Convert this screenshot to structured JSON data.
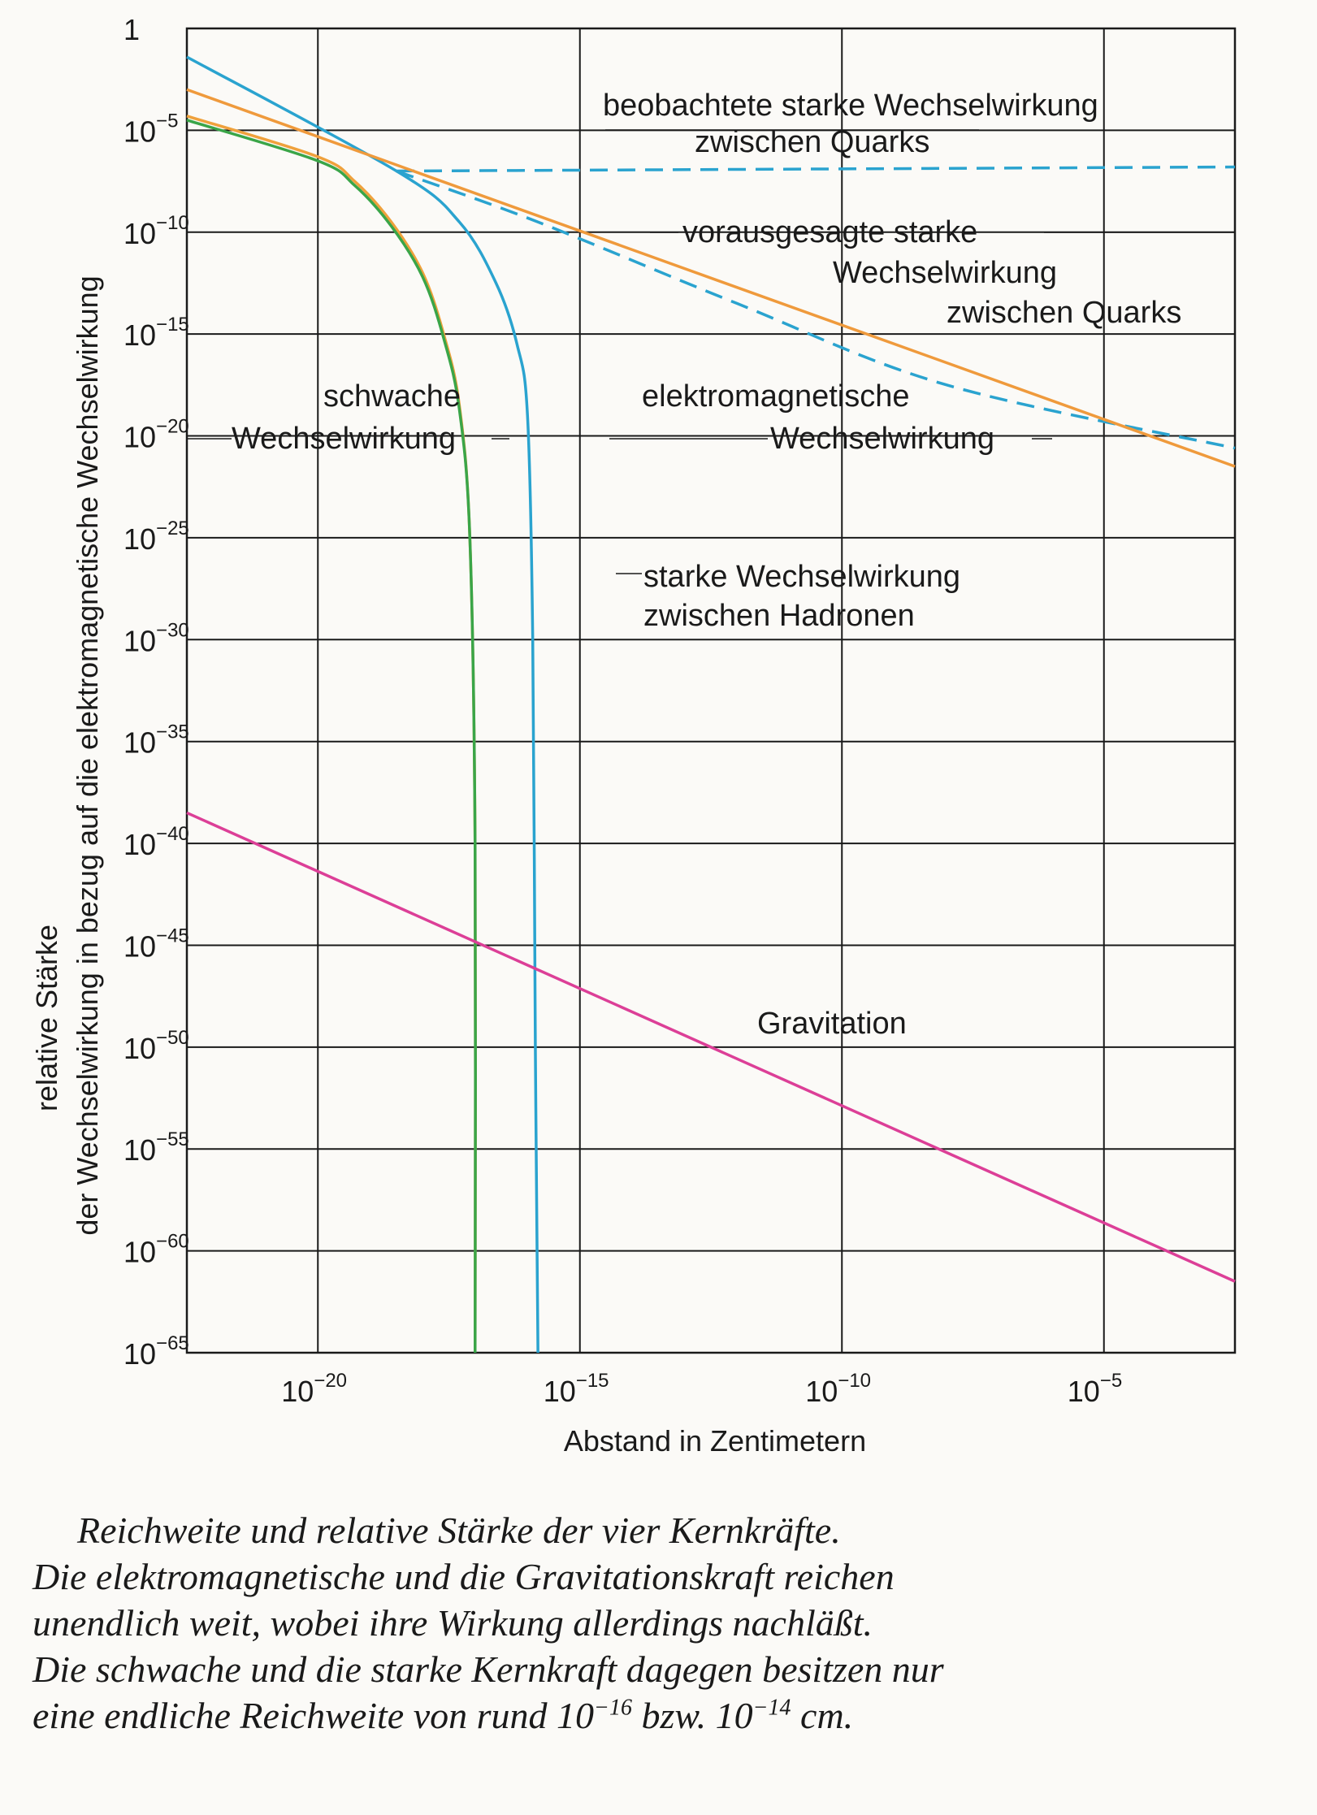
{
  "chart_data": {
    "type": "line",
    "xlabel": "Abstand in Zentimetern",
    "ylabel_line1": "relative Stärke",
    "ylabel_line2": "der Wechselwirkung in bezug  auf die elektromagnetische Wechselwirkung",
    "x_scale": "log",
    "y_scale": "log",
    "x_range_exponent": [
      -22.5,
      -2.5
    ],
    "y_range_exponent": [
      -65,
      0
    ],
    "x_ticks": [
      {
        "base": "10",
        "exp": "−20",
        "value": -20
      },
      {
        "base": "10",
        "exp": "−15",
        "value": -15
      },
      {
        "base": "10",
        "exp": "−10",
        "value": -10
      },
      {
        "base": "10",
        "exp": "−5",
        "value": -5
      }
    ],
    "y_ticks": [
      {
        "base": "1",
        "exp": "",
        "value": 0
      },
      {
        "base": "10",
        "exp": "−5",
        "value": -5
      },
      {
        "base": "10",
        "exp": "−10",
        "value": -10
      },
      {
        "base": "10",
        "exp": "−15",
        "value": -15
      },
      {
        "base": "10",
        "exp": "−20",
        "value": -20
      },
      {
        "base": "10",
        "exp": "−25",
        "value": -25
      },
      {
        "base": "10",
        "exp": "−30",
        "value": -30
      },
      {
        "base": "10",
        "exp": "−35",
        "value": -35
      },
      {
        "base": "10",
        "exp": "−40",
        "value": -40
      },
      {
        "base": "10",
        "exp": "−45",
        "value": -45
      },
      {
        "base": "10",
        "exp": "−50",
        "value": -50
      },
      {
        "base": "10",
        "exp": "−55",
        "value": -55
      },
      {
        "base": "10",
        "exp": "−60",
        "value": -60
      },
      {
        "base": "10",
        "exp": "−65",
        "value": -65
      }
    ],
    "grid": true,
    "series": [
      {
        "key": "strong_quarks_observed",
        "color": "#2aa3cf",
        "dash": "22,12",
        "x": [
          -18.5,
          -2.5
        ],
        "y": [
          -7,
          -6.8
        ]
      },
      {
        "key": "strong_quarks_predicted",
        "color": "#2aa3cf",
        "dash": "22,12",
        "x": [
          -18.5,
          -15.8,
          -12,
          -8,
          -2.5
        ],
        "y": [
          -7,
          -9.5,
          -13.5,
          -17.5,
          -20.6
        ]
      },
      {
        "key": "strong_hadrons",
        "color": "#2aa3cf",
        "dash": "",
        "x": [
          -22.5,
          -18.5,
          -17.3,
          -16.6,
          -16.2,
          -16.0,
          -15.9,
          -15.85,
          -15.8
        ],
        "y": [
          -1.4,
          -7,
          -9.5,
          -12.5,
          -15.5,
          -19,
          -30,
          -50,
          -65
        ]
      },
      {
        "key": "electromagnetic",
        "color": "#ef9a3c",
        "dash": "",
        "x": [
          -22.5,
          -2.5
        ],
        "y": [
          -3,
          -21.5
        ]
      },
      {
        "key": "weak_orange_edge",
        "color": "#efa13c",
        "dash": "",
        "x": [
          -22.5,
          -20.0,
          -19.3,
          -18.6,
          -18.0,
          -17.6,
          -17.3,
          -17.1,
          -17.0,
          -17.0
        ],
        "y": [
          -4.3,
          -6.3,
          -7.5,
          -9.5,
          -12.0,
          -15.0,
          -18.5,
          -25.0,
          -40.0,
          -65.0
        ]
      },
      {
        "key": "weak",
        "color": "#3aa548",
        "dash": "",
        "x": [
          -22.5,
          -20.0,
          -19.3,
          -18.6,
          -18.0,
          -17.6,
          -17.3,
          -17.1,
          -17.0,
          -17.0
        ],
        "y": [
          -4.5,
          -6.5,
          -7.7,
          -9.7,
          -12.2,
          -15.2,
          -18.7,
          -25.0,
          -40.0,
          -65.0
        ]
      },
      {
        "key": "gravitation",
        "color": "#dc3f97",
        "dash": "",
        "x": [
          -22.5,
          -2.5
        ],
        "y": [
          -38.5,
          -61.5
        ]
      }
    ],
    "annotations": {
      "observed_l1": "beobachtete starke Wechselwirkung",
      "observed_l2": "zwischen Quarks",
      "predicted_l1": "vorausgesagte starke",
      "predicted_l2": "Wechselwirkung",
      "predicted_l3": "zwischen Quarks",
      "weak_l1": "schwache",
      "weak_l2": "Wechselwirkung",
      "em_l1": "elektromagnetische",
      "em_l2": "Wechselwirkung",
      "hadron_l1": "starke Wechselwirkung",
      "hadron_l2": "zwischen Hadronen",
      "gravitation": "Gravitation"
    }
  },
  "caption": {
    "line1": "Reichweite und relative Stärke der vier Kernkräfte.",
    "line2": "Die elektromagnetische und die Gravitationskraft reichen",
    "line3": "unendlich weit, wobei ihre Wirkung allerdings nachläßt.",
    "line4": "Die schwache und die starke Kernkraft dagegen besitzen nur",
    "line5_a": "eine endliche Reichweite von rund 10",
    "line5_exp1": "−16",
    "line5_b": " bzw. 10",
    "line5_exp2": "−14",
    "line5_c": " cm."
  }
}
